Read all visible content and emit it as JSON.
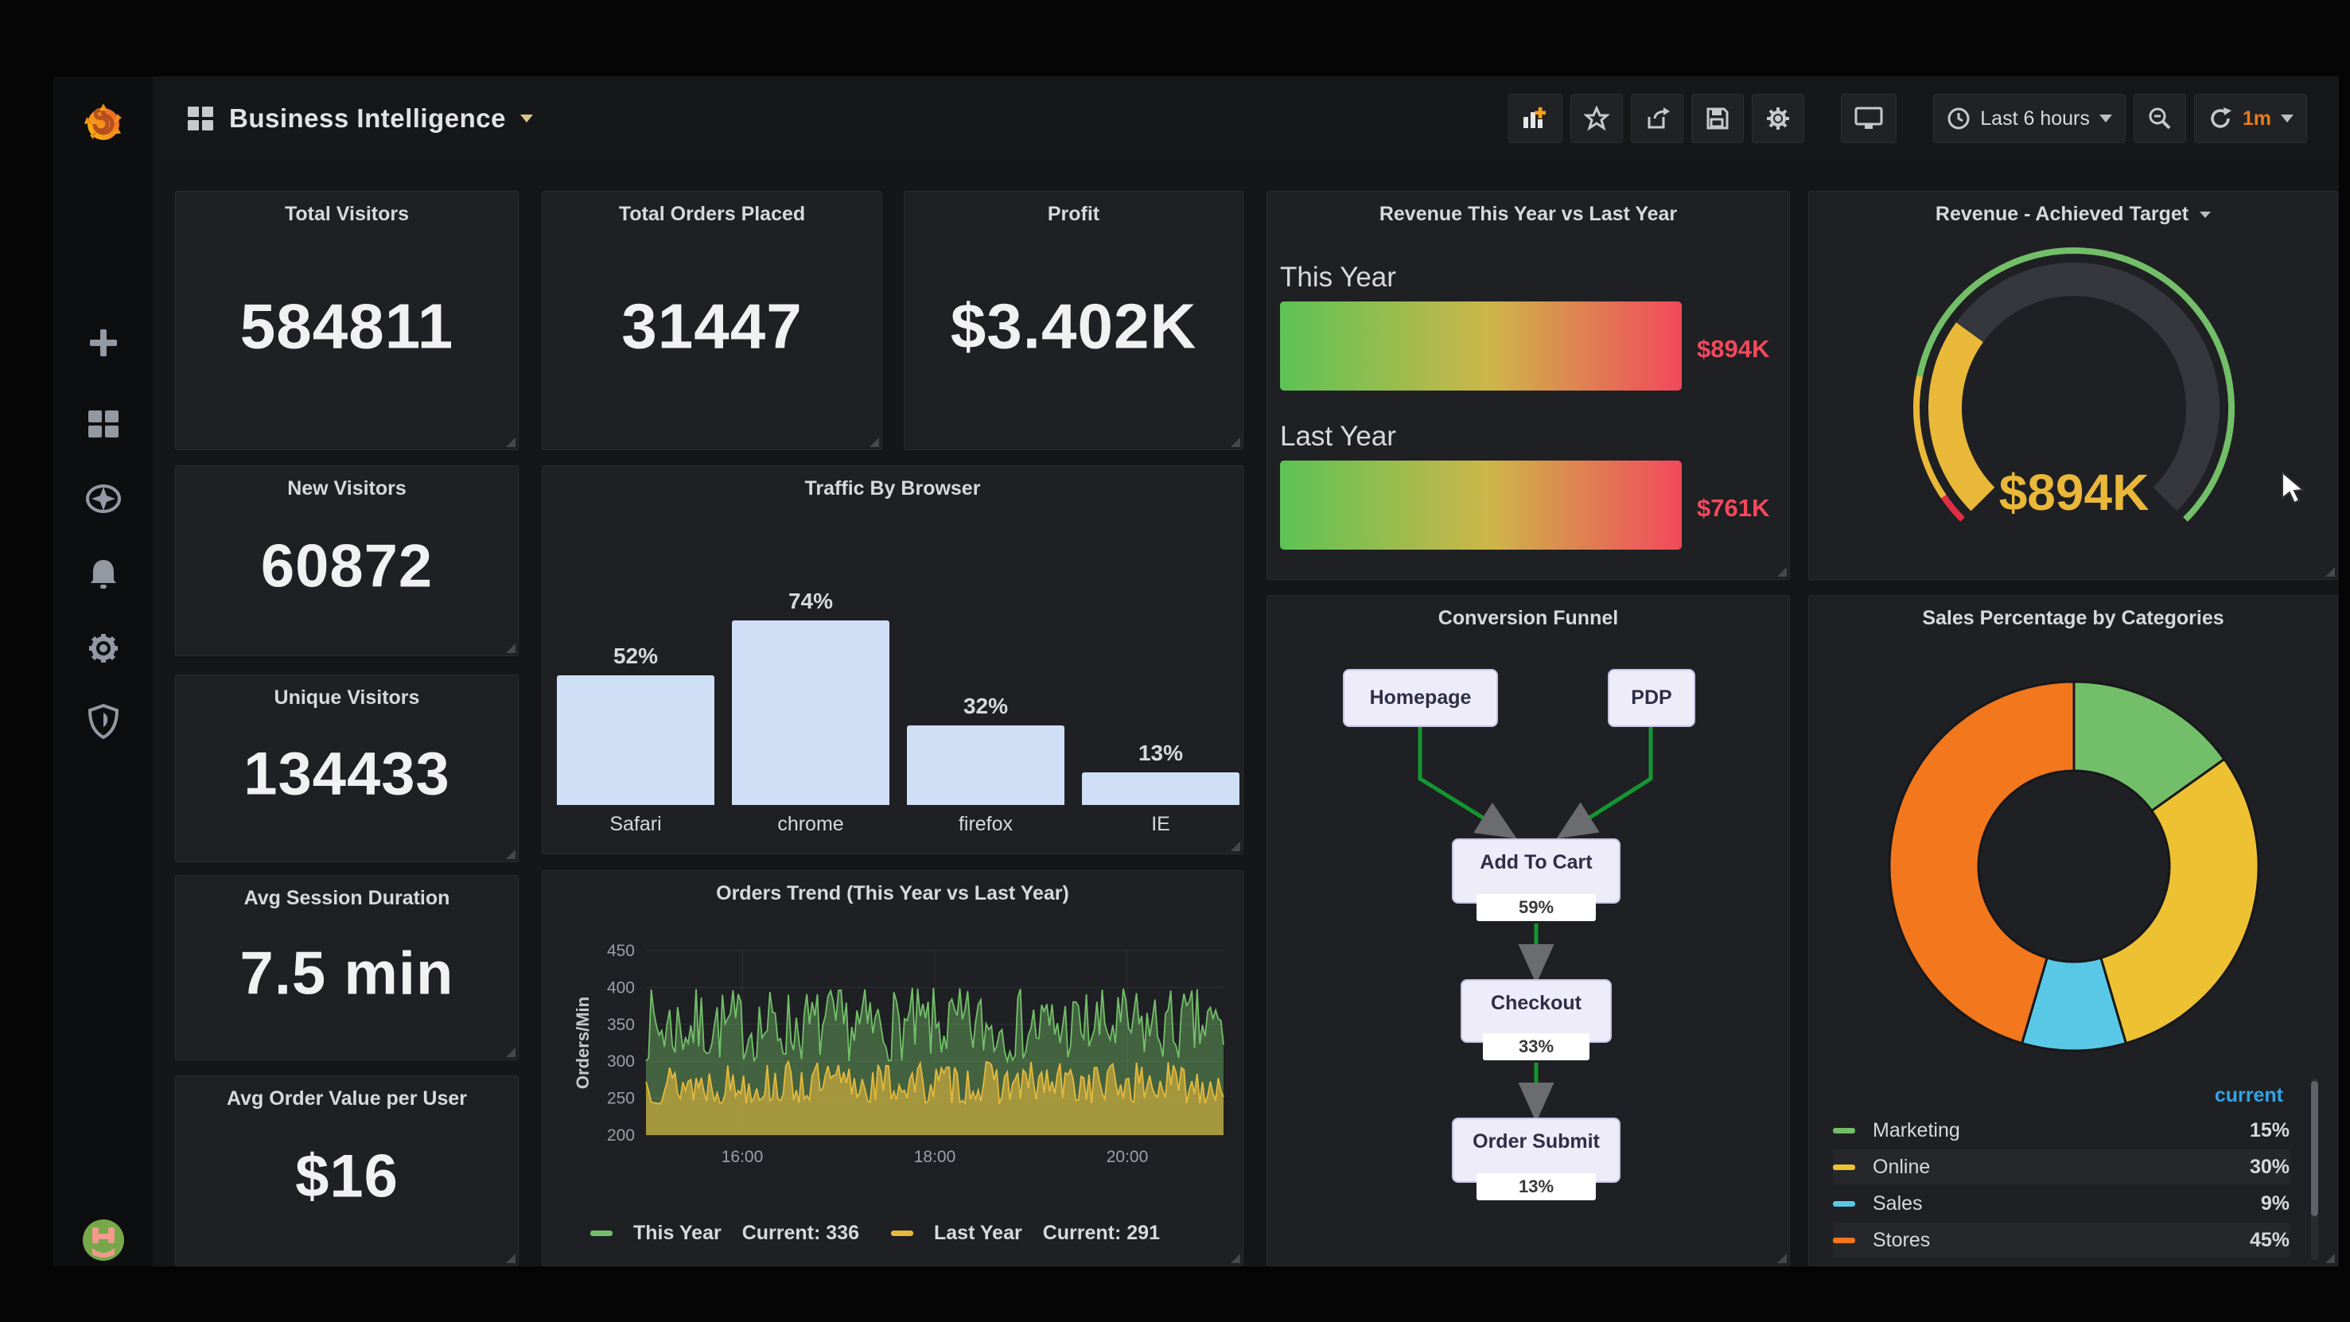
{
  "navbar": {
    "title": "Business Intelligence",
    "time_picker_label": "Last 6 hours",
    "refresh_interval": "1m",
    "toolbar_icons": [
      "add-panel",
      "star",
      "share",
      "save",
      "settings",
      "cycle-view",
      "time-range",
      "zoom-out",
      "refresh"
    ]
  },
  "sidebar": {
    "icons": [
      "grafana-logo",
      "plus",
      "dashboards",
      "explore",
      "alerting",
      "configuration",
      "server-admin",
      "user-avatar"
    ]
  },
  "stats": [
    {
      "title": "Total Visitors",
      "value": "584811"
    },
    {
      "title": "Total Orders Placed",
      "value": "31447"
    },
    {
      "title": "Profit",
      "value": "$3.402K"
    },
    {
      "title": "New Visitors",
      "value": "60872"
    },
    {
      "title": "Unique Visitors",
      "value": "134433"
    },
    {
      "title": "Avg Session Duration",
      "value": "7.5 min"
    },
    {
      "title": "Avg Order Value per User",
      "value": "$16"
    }
  ],
  "chart_data": [
    {
      "id": "traffic_by_browser",
      "type": "bar",
      "title": "Traffic By Browser",
      "categories": [
        "Safari",
        "chrome",
        "firefox",
        "IE"
      ],
      "values": [
        52,
        74,
        32,
        13
      ],
      "unit": "%",
      "bar_color": "#cfdff5",
      "grid": false,
      "value_labels": "above bars"
    },
    {
      "id": "orders_trend",
      "type": "area",
      "title": "Orders Trend (This Year vs Last Year)",
      "ylabel": "Orders/Min",
      "ylim": [
        200,
        450
      ],
      "yticks": [
        200,
        250,
        300,
        350,
        400,
        450
      ],
      "xticks": [
        "16:00",
        "18:00",
        "20:00"
      ],
      "grid": true,
      "legend_position": "bottom",
      "series": [
        {
          "name": "This Year",
          "current": 336,
          "approx_band": [
            300,
            400
          ],
          "color": "#73bf69"
        },
        {
          "name": "Last Year",
          "current": 291,
          "approx_band": [
            242,
            300
          ],
          "color": "#e5b93c"
        }
      ],
      "legend": [
        {
          "label": "This Year",
          "current_label": "Current: 336"
        },
        {
          "label": "Last Year",
          "current_label": "Current: 291"
        }
      ]
    },
    {
      "id": "revenue_compare",
      "type": "bar",
      "title": "Revenue This Year vs Last Year",
      "rows": [
        {
          "label": "This Year",
          "value": "$894K"
        },
        {
          "label": "Last Year",
          "value": "$761K"
        }
      ],
      "value_color": "#f2495c",
      "bar_gradient": [
        "#5cc354",
        "#cdb649",
        "#f2495c"
      ]
    },
    {
      "id": "revenue_gauge",
      "type": "gauge",
      "title": "Revenue - Achieved Target",
      "value": "$894K",
      "value_color": "#eab839",
      "value_fraction": 0.3,
      "sweep_degrees": 270,
      "thresholds": [
        {
          "color": "#e02f44",
          "to": 0.04
        },
        {
          "color": "#eab839",
          "to": 0.21
        },
        {
          "color": "#73bf69",
          "to": 1
        }
      ]
    },
    {
      "id": "conversion_funnel",
      "type": "diagram",
      "title": "Conversion Funnel",
      "nodes": [
        {
          "label": "Homepage",
          "value": ""
        },
        {
          "label": "PDP",
          "value": ""
        },
        {
          "label": "Add To Cart",
          "value": "59%"
        },
        {
          "label": "Checkout",
          "value": "33%"
        },
        {
          "label": "Order Submit",
          "value": "13%"
        }
      ],
      "edges": [
        "Homepage→Add To Cart",
        "PDP→Add To Cart",
        "Add To Cart→Checkout",
        "Checkout→Order Submit"
      ],
      "connector_color": "#149632"
    },
    {
      "id": "sales_categories",
      "type": "pie",
      "title": "Sales Percentage by Categories",
      "legend_header": "current",
      "unit": "%",
      "donut": true,
      "slices": [
        {
          "label": "Marketing",
          "value": 15,
          "color": "#73bf69"
        },
        {
          "label": "Online",
          "value": 30,
          "color": "#eec133"
        },
        {
          "label": "Sales",
          "value": 9,
          "color": "#59c8e6"
        },
        {
          "label": "Stores",
          "value": 45,
          "color": "#f2771d"
        }
      ]
    }
  ],
  "colors": {
    "app_bg": "#161719",
    "panel_bg": "#1f2023",
    "text": "#d8d9da",
    "stat_value": "#f1f1f1",
    "accent_orange": "#eb7b18",
    "red": "#f2495c",
    "green": "#73bf69",
    "yellow": "#eab839",
    "legend_header_blue": "#33a2e5"
  },
  "cursor": {
    "visible": true
  }
}
